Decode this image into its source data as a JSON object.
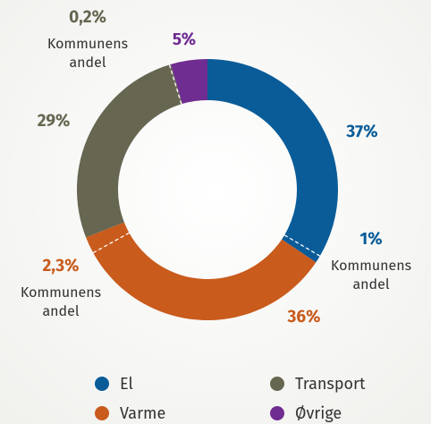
{
  "chart_data": {
    "type": "donut",
    "categories": [
      "El",
      "Varme",
      "Transport",
      "Øvrige"
    ],
    "values": [
      37,
      36,
      29,
      5
    ],
    "value_labels": [
      "37%",
      "36%",
      "29%",
      "5%"
    ],
    "colors": [
      "#0a5c99",
      "#c95b1c",
      "#666651",
      "#6f2c91"
    ],
    "sub_values": [
      1,
      2.3,
      0.2,
      null
    ],
    "sub_value_labels": [
      "1%",
      "2,3%",
      "0,2%",
      null
    ],
    "sub_label_lines": [
      "Kommunens",
      "andel"
    ]
  }
}
